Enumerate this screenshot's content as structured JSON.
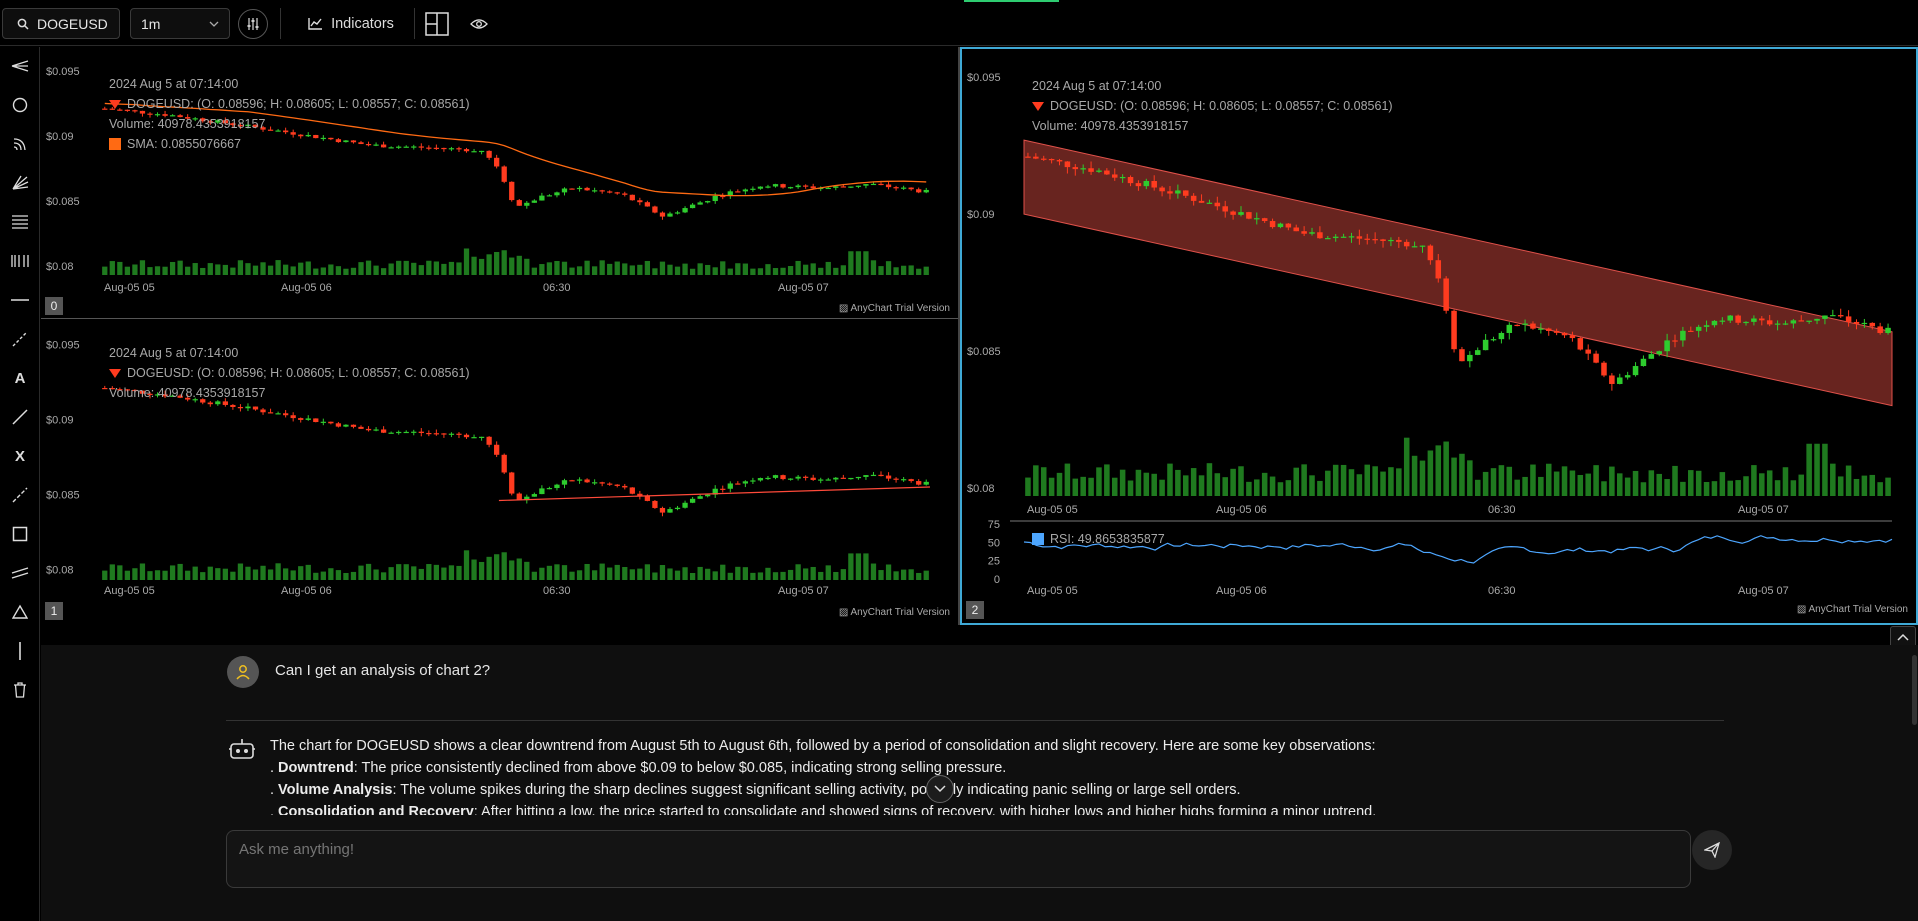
{
  "toolbar": {
    "symbol": "DOGEUSD",
    "timeframe": "1m",
    "timeframe_options": [
      "1m"
    ],
    "indicators_label": "Indicators"
  },
  "charts": [
    {
      "id": "0",
      "timestamp": "2024 Aug 5 at 07:14:00",
      "ohlc": "DOGEUSD: (O: 0.08596; H: 0.08605; L: 0.08557; C: 0.08561)",
      "volume": "Volume: 40978.4353918157",
      "indicator": "SMA: 0.0855076667",
      "indicator_color": "#ff6a13",
      "y_ticks": [
        "$0.095",
        "$0.09",
        "$0.085",
        "$0.08"
      ],
      "x_ticks": [
        "Aug-05 05",
        "Aug-05 06",
        "06:30",
        "Aug-05 07"
      ],
      "watermark": "AnyChart Trial Version"
    },
    {
      "id": "1",
      "timestamp": "2024 Aug 5 at 07:14:00",
      "ohlc": "DOGEUSD: (O: 0.08596; H: 0.08605; L: 0.08557; C: 0.08561)",
      "volume": "Volume: 40978.4353918157",
      "y_ticks": [
        "$0.095",
        "$0.09",
        "$0.085",
        "$0.08"
      ],
      "x_ticks": [
        "Aug-05 05",
        "Aug-05 06",
        "06:30",
        "Aug-05 07"
      ],
      "watermark": "AnyChart Trial Version"
    },
    {
      "id": "2",
      "timestamp": "2024 Aug 5 at 07:14:00",
      "ohlc": "DOGEUSD: (O: 0.08596; H: 0.08605; L: 0.08557; C: 0.08561)",
      "volume": "Volume: 40978.4353918157",
      "rsi": "RSI: 49.8653835877",
      "rsi_color": "#4da6ff",
      "y_ticks": [
        "$0.095",
        "$0.09",
        "$0.085",
        "$0.08"
      ],
      "rsi_ticks": [
        "75",
        "50",
        "25",
        "0"
      ],
      "x_ticks": [
        "Aug-05 05",
        "Aug-05 06",
        "06:30",
        "Aug-05 07"
      ],
      "watermark": "AnyChart Trial Version"
    }
  ],
  "chat": {
    "user_message": "Can I get an analysis of chart 2?",
    "answer_intro": "The chart for DOGEUSD shows a clear downtrend from August 5th to August 6th, followed by a period of consolidation and slight recovery. Here are some key observations:",
    "points": [
      {
        "title": "Downtrend",
        "text": ": The price consistently declined from above $0.09 to below $0.085, indicating strong selling pressure."
      },
      {
        "title": "Volume Analysis",
        "text": ": The volume spikes during the sharp declines suggest significant selling activity, possibly indicating panic selling or large sell orders."
      },
      {
        "title": "Consolidation and Recovery",
        "text": ": After hitting a low, the price started to consolidate and showed signs of recovery, with higher lows and higher highs forming a minor uptrend."
      }
    ],
    "input_placeholder": "Ask me anything!"
  },
  "colors": {
    "up": "#2ecc2e",
    "down": "#ff3b1f",
    "volume": "#1f7a1f",
    "channel": "#7a2a24",
    "active_border": "#3fa9d6"
  }
}
